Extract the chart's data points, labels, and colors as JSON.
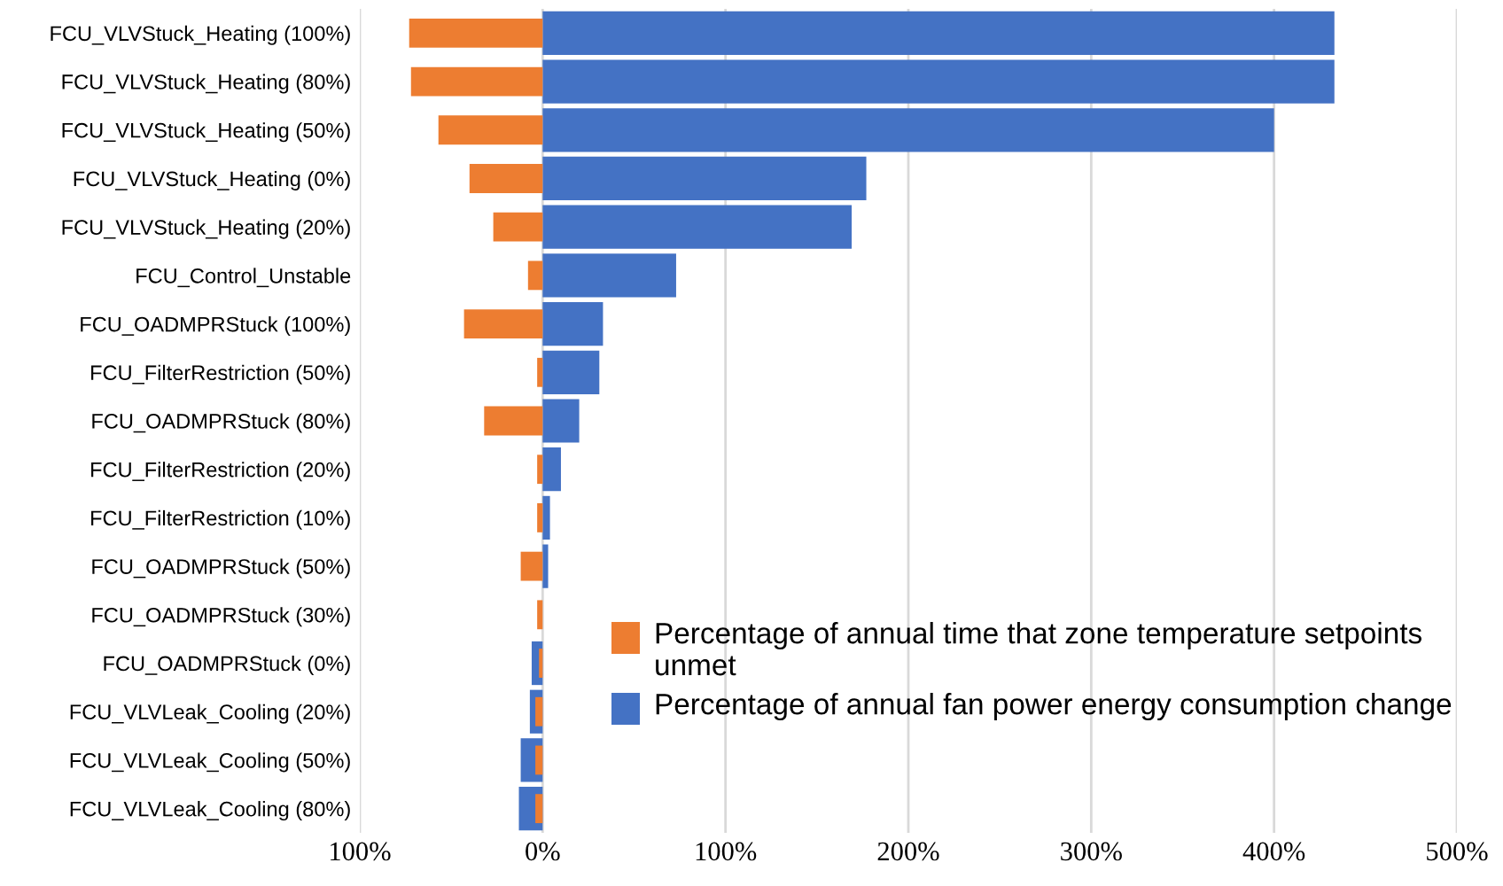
{
  "chart_data": {
    "type": "bar",
    "orientation": "horizontal",
    "categories": [
      "FCU_VLVStuck_Heating (100%)",
      "FCU_VLVStuck_Heating (80%)",
      "FCU_VLVStuck_Heating (50%)",
      "FCU_VLVStuck_Heating (0%)",
      "FCU_VLVStuck_Heating (20%)",
      "FCU_Control_Unstable",
      "FCU_OADMPRStuck (100%)",
      "FCU_FilterRestriction (50%)",
      "FCU_OADMPRStuck (80%)",
      "FCU_FilterRestriction (20%)",
      "FCU_FilterRestriction (10%)",
      "FCU_OADMPRStuck (50%)",
      "FCU_OADMPRStuck (30%)",
      "FCU_OADMPRStuck (0%)",
      "FCU_VLVLeak_Cooling (20%)",
      "FCU_VLVLeak_Cooling (50%)",
      "FCU_VLVLeak_Cooling (80%)"
    ],
    "series": [
      {
        "name": "Percentage of annual time that zone temperature setpoints unmet",
        "color": "#ed7d31",
        "values": [
          -73,
          -72,
          -57,
          -40,
          -27,
          -8,
          -43,
          -3,
          -32,
          -3,
          -3,
          -12,
          -3,
          -2,
          -4,
          -4,
          -4
        ]
      },
      {
        "name": "Percentage of annual fan power energy consumption change",
        "color": "#4472c4",
        "values": [
          433,
          433,
          400,
          177,
          169,
          73,
          33,
          31,
          20,
          10,
          4,
          3,
          0,
          -6,
          -7,
          -12,
          -13
        ]
      }
    ],
    "xlim": [
      -100,
      500
    ],
    "xticks": [
      {
        "value": -100,
        "label": "100%"
      },
      {
        "value": 0,
        "label": "0%"
      },
      {
        "value": 100,
        "label": "100%"
      },
      {
        "value": 200,
        "label": "200%"
      },
      {
        "value": 300,
        "label": "300%"
      },
      {
        "value": 400,
        "label": "400%"
      },
      {
        "value": 500,
        "label": "500%"
      }
    ],
    "grid": "x",
    "legend": "bottom right"
  }
}
